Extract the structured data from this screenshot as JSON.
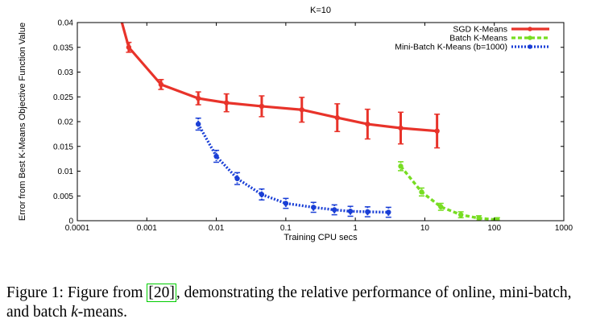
{
  "chart_data": {
    "type": "line",
    "title": "K=10",
    "xlabel": "Training CPU secs",
    "ylabel": "Error from Best K-Means Objective Function Value",
    "x_scale": "log",
    "xlim": [
      0.0001,
      1000
    ],
    "ylim": [
      0,
      0.04
    ],
    "x_ticks": [
      "0.0001",
      "0.001",
      "0.01",
      "0.1",
      "1",
      "10",
      "100",
      "1000"
    ],
    "x_tick_values": [
      0.0001,
      0.001,
      0.01,
      0.1,
      1,
      10,
      100,
      1000
    ],
    "y_ticks": [
      "0",
      "0.005",
      "0.01",
      "0.015",
      "0.02",
      "0.025",
      "0.03",
      "0.035",
      "0.04"
    ],
    "y_tick_values": [
      0,
      0.005,
      0.01,
      0.015,
      0.02,
      0.025,
      0.03,
      0.035,
      0.04
    ],
    "legend_position": "top-right",
    "series": [
      {
        "name": "SGD K-Means",
        "color": "#e8332a",
        "style": "solid",
        "x": [
          0.0004,
          0.00055,
          0.0016,
          0.0055,
          0.014,
          0.045,
          0.17,
          0.55,
          1.5,
          4.5,
          15
        ],
        "y": [
          0.042,
          0.035,
          0.0275,
          0.0247,
          0.0238,
          0.0231,
          0.0224,
          0.0208,
          0.0195,
          0.0187,
          0.0181
        ],
        "err": [
          0.0015,
          0.001,
          0.001,
          0.0013,
          0.0018,
          0.0021,
          0.0025,
          0.0028,
          0.003,
          0.0032,
          0.0034
        ]
      },
      {
        "name": "Batch K-Means",
        "color": "#77dd22",
        "style": "dashed",
        "x": [
          4.5,
          9,
          17,
          33,
          60,
          110
        ],
        "y": [
          0.011,
          0.0058,
          0.0028,
          0.0012,
          0.0005,
          0.0002
        ],
        "err": [
          0.0009,
          0.0008,
          0.0007,
          0.0006,
          0.0005,
          0.0004
        ]
      },
      {
        "name": "Mini-Batch K-Means (b=1000)",
        "color": "#1a3fd6",
        "style": "dotted",
        "x": [
          0.0055,
          0.01,
          0.02,
          0.045,
          0.1,
          0.25,
          0.5,
          0.85,
          1.5,
          3
        ],
        "y": [
          0.0195,
          0.013,
          0.0085,
          0.0053,
          0.0035,
          0.0027,
          0.0022,
          0.0019,
          0.0018,
          0.0017
        ],
        "err": [
          0.0012,
          0.0012,
          0.0012,
          0.0011,
          0.001,
          0.001,
          0.001,
          0.001,
          0.001,
          0.001
        ]
      }
    ]
  },
  "caption": {
    "prefix": "Figure 1: Figure from ",
    "ref": "[20]",
    "middle": ", demonstrating the relative performance of online, mini-batch, and batch ",
    "k": "k",
    "suffix": "-means."
  }
}
